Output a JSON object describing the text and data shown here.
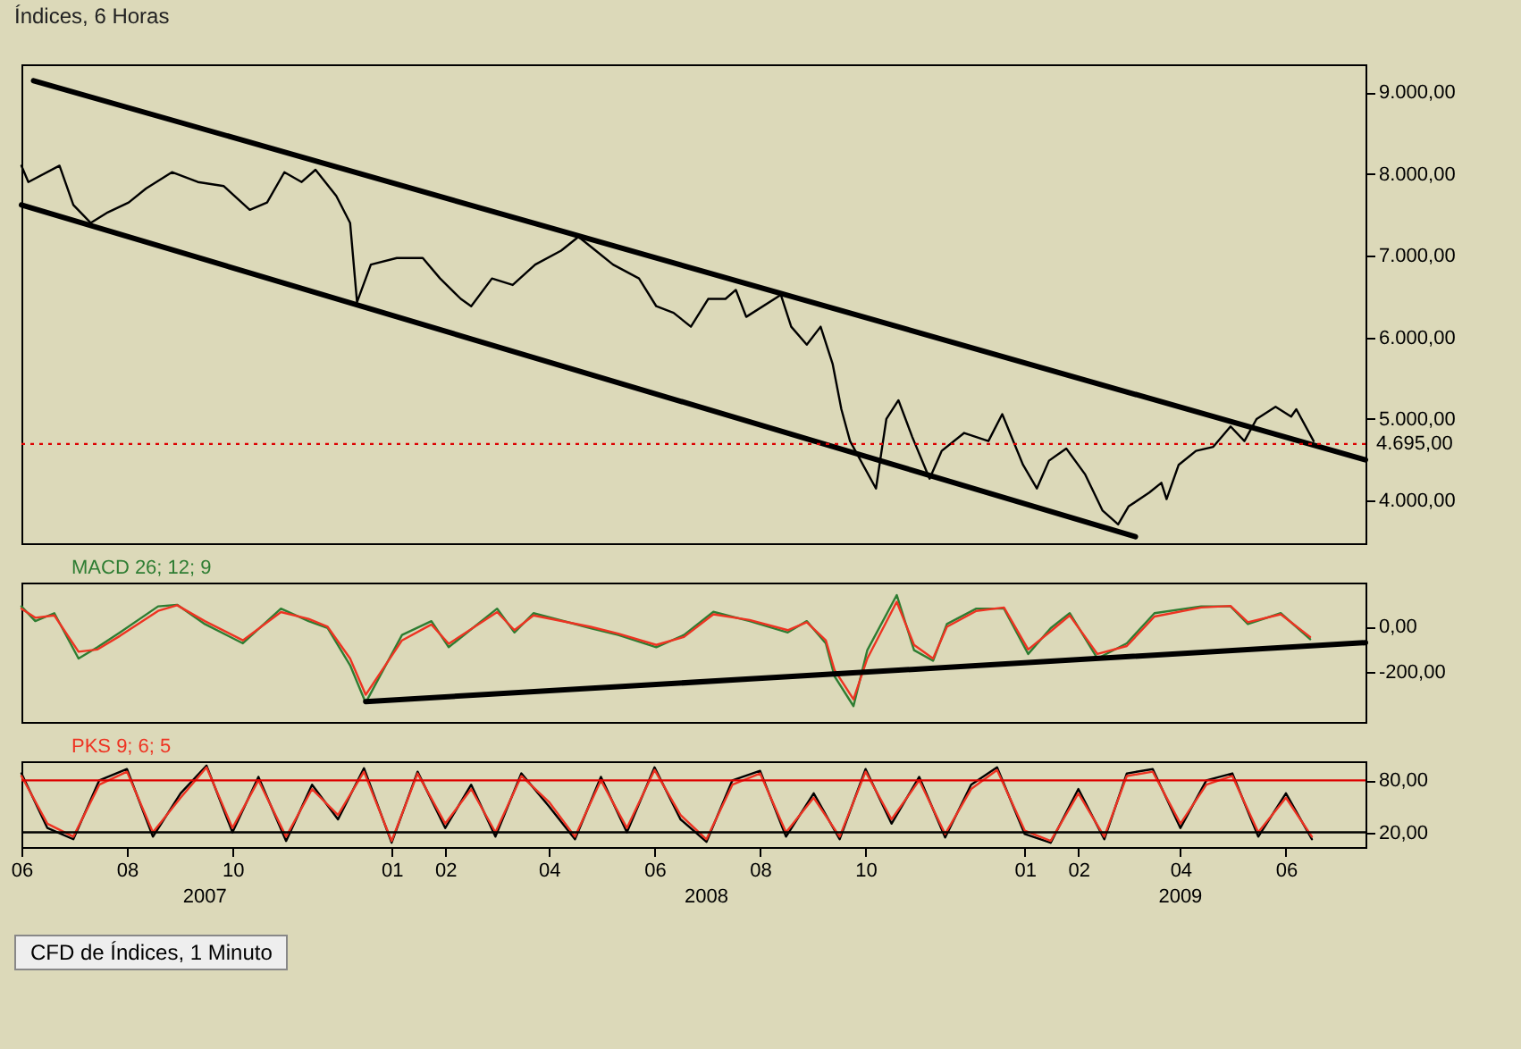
{
  "chart_data": [
    {
      "type": "line",
      "title": "Índices, 6 Horas",
      "tick_labels": "y",
      "xlim": [
        "2007-06-01",
        "2009-07-17"
      ],
      "ylim": [
        3480,
        9340
      ],
      "yticks": [
        {
          "value": 4000,
          "label": "4.000,00"
        },
        {
          "value": 5000,
          "label": "5.000,00"
        },
        {
          "value": 6000,
          "label": "6.000,00"
        },
        {
          "value": 7000,
          "label": "7.000,00"
        },
        {
          "value": 8000,
          "label": "8.000,00"
        },
        {
          "value": 9000,
          "label": "9.000,00"
        }
      ],
      "ref_lines": [
        {
          "axis": "y",
          "value": 4695,
          "label": "4.695,00",
          "color": "#dd0000",
          "line_style": "dotted"
        }
      ],
      "series": [
        {
          "color": "#000000",
          "x": [
            "2007-06-01",
            "2007-06-05",
            "2007-06-23",
            "2007-07-01",
            "2007-07-11",
            "2007-07-21",
            "2007-08-02",
            "2007-08-12",
            "2007-08-27",
            "2007-09-11",
            "2007-09-26",
            "2007-10-11",
            "2007-10-21",
            "2007-10-31",
            "2007-11-10",
            "2007-11-18",
            "2007-11-30",
            "2007-12-08",
            "2007-12-12",
            "2007-12-20",
            "2008-01-04",
            "2008-01-19",
            "2008-01-29",
            "2008-02-10",
            "2008-02-16",
            "2008-02-28",
            "2008-03-11",
            "2008-03-24",
            "2008-04-08",
            "2008-04-18",
            "2008-04-28",
            "2008-05-08",
            "2008-05-23",
            "2008-06-02",
            "2008-06-12",
            "2008-06-22",
            "2008-07-02",
            "2008-07-12",
            "2008-07-18",
            "2008-07-24",
            "2008-08-13",
            "2008-08-19",
            "2008-08-28",
            "2008-09-05",
            "2008-09-12",
            "2008-09-17",
            "2008-09-22",
            "2008-10-07",
            "2008-10-13",
            "2008-10-20",
            "2008-10-28",
            "2008-11-07",
            "2008-11-14",
            "2008-11-27",
            "2008-12-11",
            "2008-12-19",
            "2008-12-31",
            "2009-01-08",
            "2009-01-15",
            "2009-01-25",
            "2009-02-05",
            "2009-02-15",
            "2009-02-24",
            "2009-03-02",
            "2009-03-14",
            "2009-03-21",
            "2009-03-24",
            "2009-03-31",
            "2009-04-10",
            "2009-04-20",
            "2009-04-30",
            "2009-05-08",
            "2009-05-15",
            "2009-05-26",
            "2009-06-04",
            "2009-06-07",
            "2009-06-17"
          ],
          "values": [
            8100,
            7900,
            8100,
            7620,
            7400,
            7530,
            7650,
            7820,
            8020,
            7900,
            7850,
            7560,
            7650,
            8020,
            7900,
            8050,
            7730,
            7400,
            6430,
            6890,
            6970,
            6970,
            6720,
            6470,
            6380,
            6720,
            6640,
            6890,
            7060,
            7230,
            7060,
            6890,
            6720,
            6380,
            6300,
            6130,
            6470,
            6470,
            6580,
            6250,
            6520,
            6130,
            5910,
            6130,
            5670,
            5120,
            4730,
            4150,
            5000,
            5230,
            4780,
            4270,
            4610,
            4830,
            4730,
            5060,
            4440,
            4150,
            4490,
            4640,
            4320,
            3880,
            3710,
            3930,
            4100,
            4220,
            4020,
            4440,
            4610,
            4660,
            4910,
            4730,
            5000,
            5150,
            5030,
            5120,
            4730
          ]
        },
        {
          "type": "line",
          "color": "#000000",
          "x": [
            "2007-06-08",
            "2009-07-17"
          ],
          "values": [
            9140,
            4500
          ]
        },
        {
          "type": "line",
          "color": "#000000",
          "x": [
            "2007-06-01",
            "2009-03-06"
          ],
          "values": [
            7620,
            3560
          ]
        }
      ]
    },
    {
      "type": "line",
      "tick_labels": "y",
      "xlim": [
        "2007-06-01",
        "2009-07-17"
      ],
      "ylim": [
        -420,
        195
      ],
      "yticks": [
        {
          "value": 0,
          "label": "0,00"
        },
        {
          "value": -200,
          "label": "-200,00"
        }
      ],
      "x": [
        "2007-06-01",
        "2007-06-09",
        "2007-06-20",
        "2007-07-04",
        "2007-07-15",
        "2007-07-28",
        "2007-08-19",
        "2007-08-30",
        "2007-09-15",
        "2007-10-07",
        "2007-10-29",
        "2007-11-14",
        "2007-11-25",
        "2007-12-08",
        "2007-12-17",
        "2008-01-07",
        "2008-01-24",
        "2008-02-03",
        "2008-03-02",
        "2008-03-12",
        "2008-03-23",
        "2008-04-25",
        "2008-05-11",
        "2008-06-02",
        "2008-06-18",
        "2008-07-05",
        "2008-07-26",
        "2008-08-17",
        "2008-08-28",
        "2008-09-08",
        "2008-09-13",
        "2008-09-24",
        "2008-10-02",
        "2008-10-19",
        "2008-10-29",
        "2008-11-09",
        "2008-11-17",
        "2008-12-04",
        "2008-12-20",
        "2009-01-03",
        "2009-01-16",
        "2009-01-27",
        "2009-02-12",
        "2009-03-01",
        "2009-03-17",
        "2009-04-13",
        "2009-04-30",
        "2009-05-10",
        "2009-05-29",
        "2009-06-15"
      ],
      "series": [
        {
          "name": "MACD 26; 12; 9",
          "color": "#2e7d32",
          "values": [
            90,
            25,
            60,
            -140,
            -90,
            -25,
            90,
            97,
            12,
            -73,
            80,
            25,
            -6,
            -170,
            -335,
            -36,
            25,
            -90,
            80,
            -25,
            60,
            -6,
            -36,
            -90,
            -36,
            66,
            25,
            -25,
            25,
            -73,
            -218,
            -350,
            -103,
            140,
            -103,
            -150,
            12,
            80,
            80,
            -120,
            -6,
            60,
            -140,
            -73,
            60,
            90,
            90,
            12,
            60,
            -55
          ]
        },
        {
          "color": "#ee3322",
          "values": [
            80,
            40,
            50,
            -110,
            -100,
            -40,
            70,
            95,
            25,
            -60,
            65,
            35,
            0,
            -140,
            -300,
            -60,
            10,
            -75,
            65,
            -15,
            50,
            0,
            -30,
            -80,
            -45,
            55,
            30,
            -15,
            20,
            -60,
            -190,
            -320,
            -140,
            110,
            -80,
            -140,
            0,
            70,
            85,
            -100,
            -20,
            50,
            -120,
            -85,
            45,
            85,
            92,
            20,
            55,
            -45
          ]
        },
        {
          "type": "line",
          "color": "#000000",
          "x": [
            "2007-12-17",
            "2009-07-17"
          ],
          "values": [
            -330,
            -70
          ]
        }
      ]
    },
    {
      "type": "line",
      "xlim": [
        "2007-06-01",
        "2009-07-17"
      ],
      "ylim": [
        3,
        102
      ],
      "yticks": [
        {
          "value": 20,
          "label": "20,00"
        },
        {
          "value": 80,
          "label": "80,00"
        }
      ],
      "xticks": [
        {
          "value": "2007-06-01",
          "label": "06"
        },
        {
          "value": "2007-08-01",
          "label": "08"
        },
        {
          "value": "2007-10-01",
          "label": "10"
        },
        {
          "value": "2008-01-01",
          "label": "01"
        },
        {
          "value": "2008-02-01",
          "label": "02"
        },
        {
          "value": "2008-04-01",
          "label": "04"
        },
        {
          "value": "2008-06-01",
          "label": "06"
        },
        {
          "value": "2008-08-01",
          "label": "08"
        },
        {
          "value": "2008-10-01",
          "label": "10"
        },
        {
          "value": "2009-01-01",
          "label": "01"
        },
        {
          "value": "2009-02-01",
          "label": "02"
        },
        {
          "value": "2009-04-01",
          "label": "04"
        },
        {
          "value": "2009-06-01",
          "label": "06"
        }
      ],
      "x2lim": [
        "2007-06-01",
        "2009-07-17"
      ],
      "x2ticks": [
        {
          "value": "2007-09-15",
          "label": "2007"
        },
        {
          "value": "2008-07-01",
          "label": "2008"
        },
        {
          "value": "2009-04-01",
          "label": "2009"
        }
      ],
      "ref_lines": [
        {
          "axis": "y",
          "value": 80,
          "color": "#dd0000"
        },
        {
          "axis": "y",
          "value": 20,
          "color": "#000000"
        }
      ],
      "annotations": [
        "CFD de Índices, 1 Minuto"
      ],
      "x": [
        "2007-06-01",
        "2007-06-16",
        "2007-07-01",
        "2007-07-16",
        "2007-08-01",
        "2007-08-16",
        "2007-09-01",
        "2007-09-16",
        "2007-10-01",
        "2007-10-16",
        "2007-11-01",
        "2007-11-16",
        "2007-12-01",
        "2007-12-16",
        "2008-01-01",
        "2008-01-16",
        "2008-02-01",
        "2008-02-16",
        "2008-03-01",
        "2008-03-16",
        "2008-04-01",
        "2008-04-16",
        "2008-05-01",
        "2008-05-16",
        "2008-06-01",
        "2008-06-16",
        "2008-07-01",
        "2008-07-16",
        "2008-08-01",
        "2008-08-16",
        "2008-09-01",
        "2008-09-16",
        "2008-10-01",
        "2008-10-16",
        "2008-11-01",
        "2008-11-16",
        "2008-12-01",
        "2008-12-16",
        "2009-01-01",
        "2009-01-16",
        "2009-02-01",
        "2009-02-16",
        "2009-03-01",
        "2009-03-16",
        "2009-04-01",
        "2009-04-16",
        "2009-05-01",
        "2009-05-16",
        "2009-06-01",
        "2009-06-16"
      ],
      "series": [
        {
          "color": "#000000",
          "values": [
            88,
            25,
            12,
            80,
            93,
            15,
            65,
            97,
            20,
            84,
            10,
            75,
            35,
            94,
            8,
            90,
            25,
            75,
            15,
            88,
            50,
            12,
            84,
            20,
            95,
            35,
            9,
            80,
            91,
            15,
            65,
            12,
            93,
            30,
            84,
            14,
            75,
            95,
            18,
            8,
            70,
            12,
            88,
            93,
            25,
            80,
            88,
            15,
            65,
            12
          ]
        },
        {
          "name": "PKS 9; 6; 5",
          "color": "#ee3322",
          "values": [
            85,
            30,
            15,
            75,
            90,
            20,
            60,
            95,
            25,
            80,
            15,
            70,
            40,
            90,
            10,
            88,
            30,
            70,
            20,
            85,
            55,
            15,
            80,
            25,
            92,
            40,
            12,
            75,
            88,
            20,
            60,
            15,
            90,
            35,
            80,
            18,
            70,
            92,
            22,
            10,
            65,
            15,
            85,
            90,
            30,
            75,
            85,
            20,
            60,
            15
          ]
        }
      ]
    }
  ]
}
